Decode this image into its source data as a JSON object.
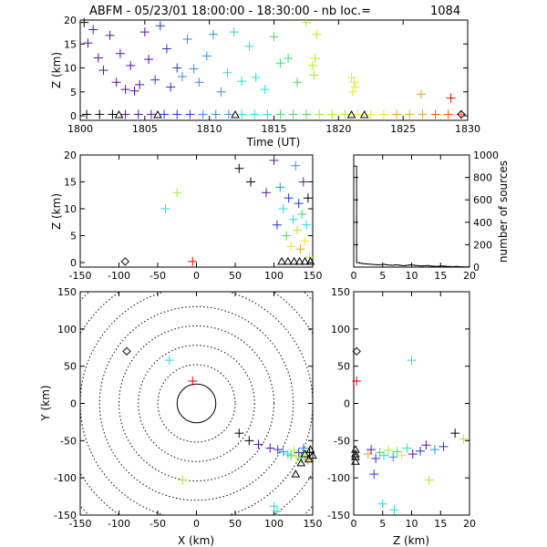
{
  "title": "ABFM - 05/23/01 18:00:00 - 18:30:00 - nb loc.=",
  "count": "1084",
  "panels": {
    "timeseries": {
      "xlabel": "Time (UT)",
      "ylabel": "Z (km)",
      "xticks": [
        "1800",
        "1805",
        "1810",
        "1815",
        "1820",
        "1825",
        "1830"
      ],
      "yticks": [
        "0",
        "5",
        "10",
        "15",
        "20"
      ]
    },
    "xz": {
      "ylabel": "Z (km)",
      "xticks": [
        "-150",
        "-100",
        "-50",
        "0",
        "50",
        "100",
        "150"
      ],
      "yticks": [
        "0",
        "5",
        "10",
        "15",
        "20"
      ]
    },
    "histogram": {
      "ylabel": "number of sources",
      "xticks": [
        "0",
        "5",
        "10",
        "15",
        "20"
      ],
      "yticks": [
        "0",
        "200",
        "400",
        "600",
        "800",
        "1000"
      ]
    },
    "xy": {
      "xlabel": "X (km)",
      "ylabel": "Y (km)",
      "xticks": [
        "-150",
        "-100",
        "-50",
        "0",
        "50",
        "100",
        "150"
      ],
      "yticks": [
        "-150",
        "-100",
        "-50",
        "0",
        "50",
        "100",
        "150"
      ]
    },
    "zy": {
      "xlabel": "Z (km)",
      "xticks": [
        "0",
        "5",
        "10",
        "15",
        "20"
      ],
      "yticks": [
        "-150",
        "-100",
        "-50",
        "0",
        "50",
        "100",
        "150"
      ]
    }
  },
  "chart_data": {
    "type": "scatter",
    "marker": "plus, colored by time",
    "color_scale": [
      "#000000",
      "#5a0fa0",
      "#2233dd",
      "#2a8ff0",
      "#22dddd",
      "#40dd60",
      "#a8f020",
      "#e8e830",
      "#f0a020",
      "#ff5010",
      "#ee0000"
    ],
    "time_range_ut": [
      1800,
      1830
    ],
    "sources_time": [
      {
        "t": 1800.3,
        "z": 19.5,
        "c": 0
      },
      {
        "t": 1800.6,
        "z": 15.2,
        "c": 1
      },
      {
        "t": 1801.0,
        "z": 18.0,
        "c": 1
      },
      {
        "t": 1801.4,
        "z": 12.1,
        "c": 1
      },
      {
        "t": 1801.8,
        "z": 9.5,
        "c": 1
      },
      {
        "t": 1802.3,
        "z": 16.8,
        "c": 1
      },
      {
        "t": 1802.8,
        "z": 7.0,
        "c": 1
      },
      {
        "t": 1803.1,
        "z": 13.0,
        "c": 1
      },
      {
        "t": 1803.5,
        "z": 5.5,
        "c": 1
      },
      {
        "t": 1803.9,
        "z": 10.5,
        "c": 1
      },
      {
        "t": 1804.2,
        "z": 5.2,
        "c": 1
      },
      {
        "t": 1804.6,
        "z": 6.5,
        "c": 1
      },
      {
        "t": 1805.0,
        "z": 17.5,
        "c": 1
      },
      {
        "t": 1805.3,
        "z": 11.8,
        "c": 1
      },
      {
        "t": 1805.8,
        "z": 7.5,
        "c": 2
      },
      {
        "t": 1806.2,
        "z": 18.8,
        "c": 2
      },
      {
        "t": 1806.7,
        "z": 14.0,
        "c": 2
      },
      {
        "t": 1807.0,
        "z": 6.0,
        "c": 2
      },
      {
        "t": 1807.5,
        "z": 10.0,
        "c": 2
      },
      {
        "t": 1807.9,
        "z": 8.2,
        "c": 3
      },
      {
        "t": 1808.3,
        "z": 16.0,
        "c": 3
      },
      {
        "t": 1808.8,
        "z": 9.8,
        "c": 3
      },
      {
        "t": 1809.2,
        "z": 7.0,
        "c": 3
      },
      {
        "t": 1809.8,
        "z": 12.5,
        "c": 3
      },
      {
        "t": 1810.3,
        "z": 17.0,
        "c": 3
      },
      {
        "t": 1810.9,
        "z": 5.0,
        "c": 3
      },
      {
        "t": 1811.4,
        "z": 9.0,
        "c": 4
      },
      {
        "t": 1811.9,
        "z": 17.5,
        "c": 4
      },
      {
        "t": 1812.5,
        "z": 7.2,
        "c": 4
      },
      {
        "t": 1813.1,
        "z": 14.5,
        "c": 4
      },
      {
        "t": 1813.6,
        "z": 8.0,
        "c": 4
      },
      {
        "t": 1814.3,
        "z": 5.5,
        "c": 4
      },
      {
        "t": 1815.0,
        "z": 16.5,
        "c": 5
      },
      {
        "t": 1815.5,
        "z": 11.0,
        "c": 5
      },
      {
        "t": 1816.1,
        "z": 12.0,
        "c": 5
      },
      {
        "t": 1816.8,
        "z": 7.0,
        "c": 5
      },
      {
        "t": 1817.5,
        "z": 19.5,
        "c": 6
      },
      {
        "t": 1818.0,
        "z": 10.5,
        "c": 6
      },
      {
        "t": 1818.1,
        "z": 8.5,
        "c": 6
      },
      {
        "t": 1818.2,
        "z": 12.0,
        "c": 6
      },
      {
        "t": 1818.3,
        "z": 17.0,
        "c": 6
      },
      {
        "t": 1821.0,
        "z": 8.0,
        "c": 7
      },
      {
        "t": 1821.1,
        "z": 5.0,
        "c": 7
      },
      {
        "t": 1821.2,
        "z": 7.0,
        "c": 7
      },
      {
        "t": 1821.3,
        "z": 6.0,
        "c": 7
      },
      {
        "t": 1826.4,
        "z": 4.5,
        "c": 8
      },
      {
        "t": 1828.7,
        "z": 3.7,
        "c": 10
      }
    ],
    "sources_xz": [
      {
        "x": -40,
        "z": 10,
        "c": 4
      },
      {
        "x": -25,
        "z": 13,
        "c": 6
      },
      {
        "x": -5,
        "z": 0.2,
        "c": 10
      },
      {
        "x": 55,
        "z": 17.5,
        "c": 0
      },
      {
        "x": 70,
        "z": 15,
        "c": 0
      },
      {
        "x": 90,
        "z": 13,
        "c": 1
      },
      {
        "x": 100,
        "z": 19,
        "c": 1
      },
      {
        "x": 104,
        "z": 7,
        "c": 2
      },
      {
        "x": 108,
        "z": 14,
        "c": 3
      },
      {
        "x": 112,
        "z": 10,
        "c": 4
      },
      {
        "x": 116,
        "z": 5,
        "c": 5
      },
      {
        "x": 119,
        "z": 12,
        "c": 2
      },
      {
        "x": 122,
        "z": 3,
        "c": 7
      },
      {
        "x": 125,
        "z": 8,
        "c": 4
      },
      {
        "x": 128,
        "z": 18,
        "c": 3
      },
      {
        "x": 130,
        "z": 6,
        "c": 6
      },
      {
        "x": 132,
        "z": 11,
        "c": 2
      },
      {
        "x": 134,
        "z": 2.5,
        "c": 8
      },
      {
        "x": 136,
        "z": 9,
        "c": 5
      },
      {
        "x": 138,
        "z": 15,
        "c": 1
      },
      {
        "x": 140,
        "z": 4,
        "c": 7
      },
      {
        "x": 142,
        "z": 7,
        "c": 4
      },
      {
        "x": 144,
        "z": 12,
        "c": 0
      },
      {
        "x": 146,
        "z": 1,
        "c": 6
      }
    ],
    "sources_xy": [
      {
        "x": -35,
        "y": 58,
        "c": 4
      },
      {
        "x": -18,
        "y": -103,
        "c": 6
      },
      {
        "x": -5,
        "y": 30,
        "c": 10
      },
      {
        "x": 55,
        "y": -40,
        "c": 0
      },
      {
        "x": 68,
        "y": -50,
        "c": 0
      },
      {
        "x": 80,
        "y": -55,
        "c": 1
      },
      {
        "x": 95,
        "y": -60,
        "c": 1
      },
      {
        "x": 100,
        "y": -138,
        "c": 4
      },
      {
        "x": 104,
        "y": -145,
        "c": 4
      },
      {
        "x": 105,
        "y": -62,
        "c": 2
      },
      {
        "x": 112,
        "y": -65,
        "c": 3
      },
      {
        "x": 118,
        "y": -68,
        "c": 4
      },
      {
        "x": 122,
        "y": -70,
        "c": 5
      },
      {
        "x": 126,
        "y": -63,
        "c": 6
      },
      {
        "x": 129,
        "y": -72,
        "c": 7
      },
      {
        "x": 132,
        "y": -66,
        "c": 2
      },
      {
        "x": 135,
        "y": -74,
        "c": 5
      },
      {
        "x": 138,
        "y": -60,
        "c": 3
      },
      {
        "x": 141,
        "y": -69,
        "c": 6
      },
      {
        "x": 144,
        "y": -76,
        "c": 8
      },
      {
        "x": 146,
        "y": -66,
        "c": 0
      }
    ],
    "sources_zy": [
      {
        "z": 0.5,
        "y": 30,
        "c": 10
      },
      {
        "z": 10,
        "y": 58,
        "c": 4
      },
      {
        "z": 13,
        "y": -103,
        "c": 6
      },
      {
        "z": 17.5,
        "y": -40,
        "c": 0
      },
      {
        "z": 2.5,
        "y": -68,
        "c": 8
      },
      {
        "z": 3.0,
        "y": -62,
        "c": 1
      },
      {
        "z": 3.8,
        "y": -74,
        "c": 2
      },
      {
        "z": 4.5,
        "y": -66,
        "c": 5
      },
      {
        "z": 5.2,
        "y": -70,
        "c": 4
      },
      {
        "z": 6.0,
        "y": -63,
        "c": 6
      },
      {
        "z": 6.8,
        "y": -72,
        "c": 3
      },
      {
        "z": 7.5,
        "y": -65,
        "c": 5
      },
      {
        "z": 8.3,
        "y": -70,
        "c": 7
      },
      {
        "z": 9.2,
        "y": -60,
        "c": 4
      },
      {
        "z": 10.2,
        "y": -68,
        "c": 1
      },
      {
        "z": 11.5,
        "y": -64,
        "c": 2
      },
      {
        "z": 12.5,
        "y": -56,
        "c": 1
      },
      {
        "z": 14.0,
        "y": -62,
        "c": 3
      },
      {
        "z": 15.5,
        "y": -58,
        "c": 2
      },
      {
        "z": 19.0,
        "y": -48,
        "c": 6
      },
      {
        "z": 5.0,
        "y": -135,
        "c": 4
      },
      {
        "z": 7.0,
        "y": -143,
        "c": 4
      },
      {
        "z": 3.5,
        "y": -95,
        "c": 2
      }
    ],
    "stations_xy": [
      {
        "x": -90,
        "y": 70,
        "shape": "diamond"
      },
      {
        "x": 128,
        "y": -95,
        "shape": "triangle"
      },
      {
        "x": 135,
        "y": -80,
        "shape": "triangle"
      },
      {
        "x": 140,
        "y": -68,
        "shape": "triangle"
      },
      {
        "x": 145,
        "y": -75,
        "shape": "triangle"
      },
      {
        "x": 147,
        "y": -62,
        "shape": "triangle"
      },
      {
        "x": 150,
        "y": -70,
        "shape": "triangle"
      }
    ],
    "histogram": {
      "bin_width_km": 0.5,
      "counts": [
        900,
        40,
        35,
        30,
        28,
        26,
        24,
        22,
        20,
        22,
        24,
        20,
        18,
        16,
        20,
        18,
        14,
        12,
        16,
        20,
        18,
        14,
        12,
        10,
        12,
        14,
        10,
        8,
        6,
        8,
        10,
        8,
        6,
        5,
        4,
        6,
        4,
        3,
        2,
        2
      ]
    }
  }
}
